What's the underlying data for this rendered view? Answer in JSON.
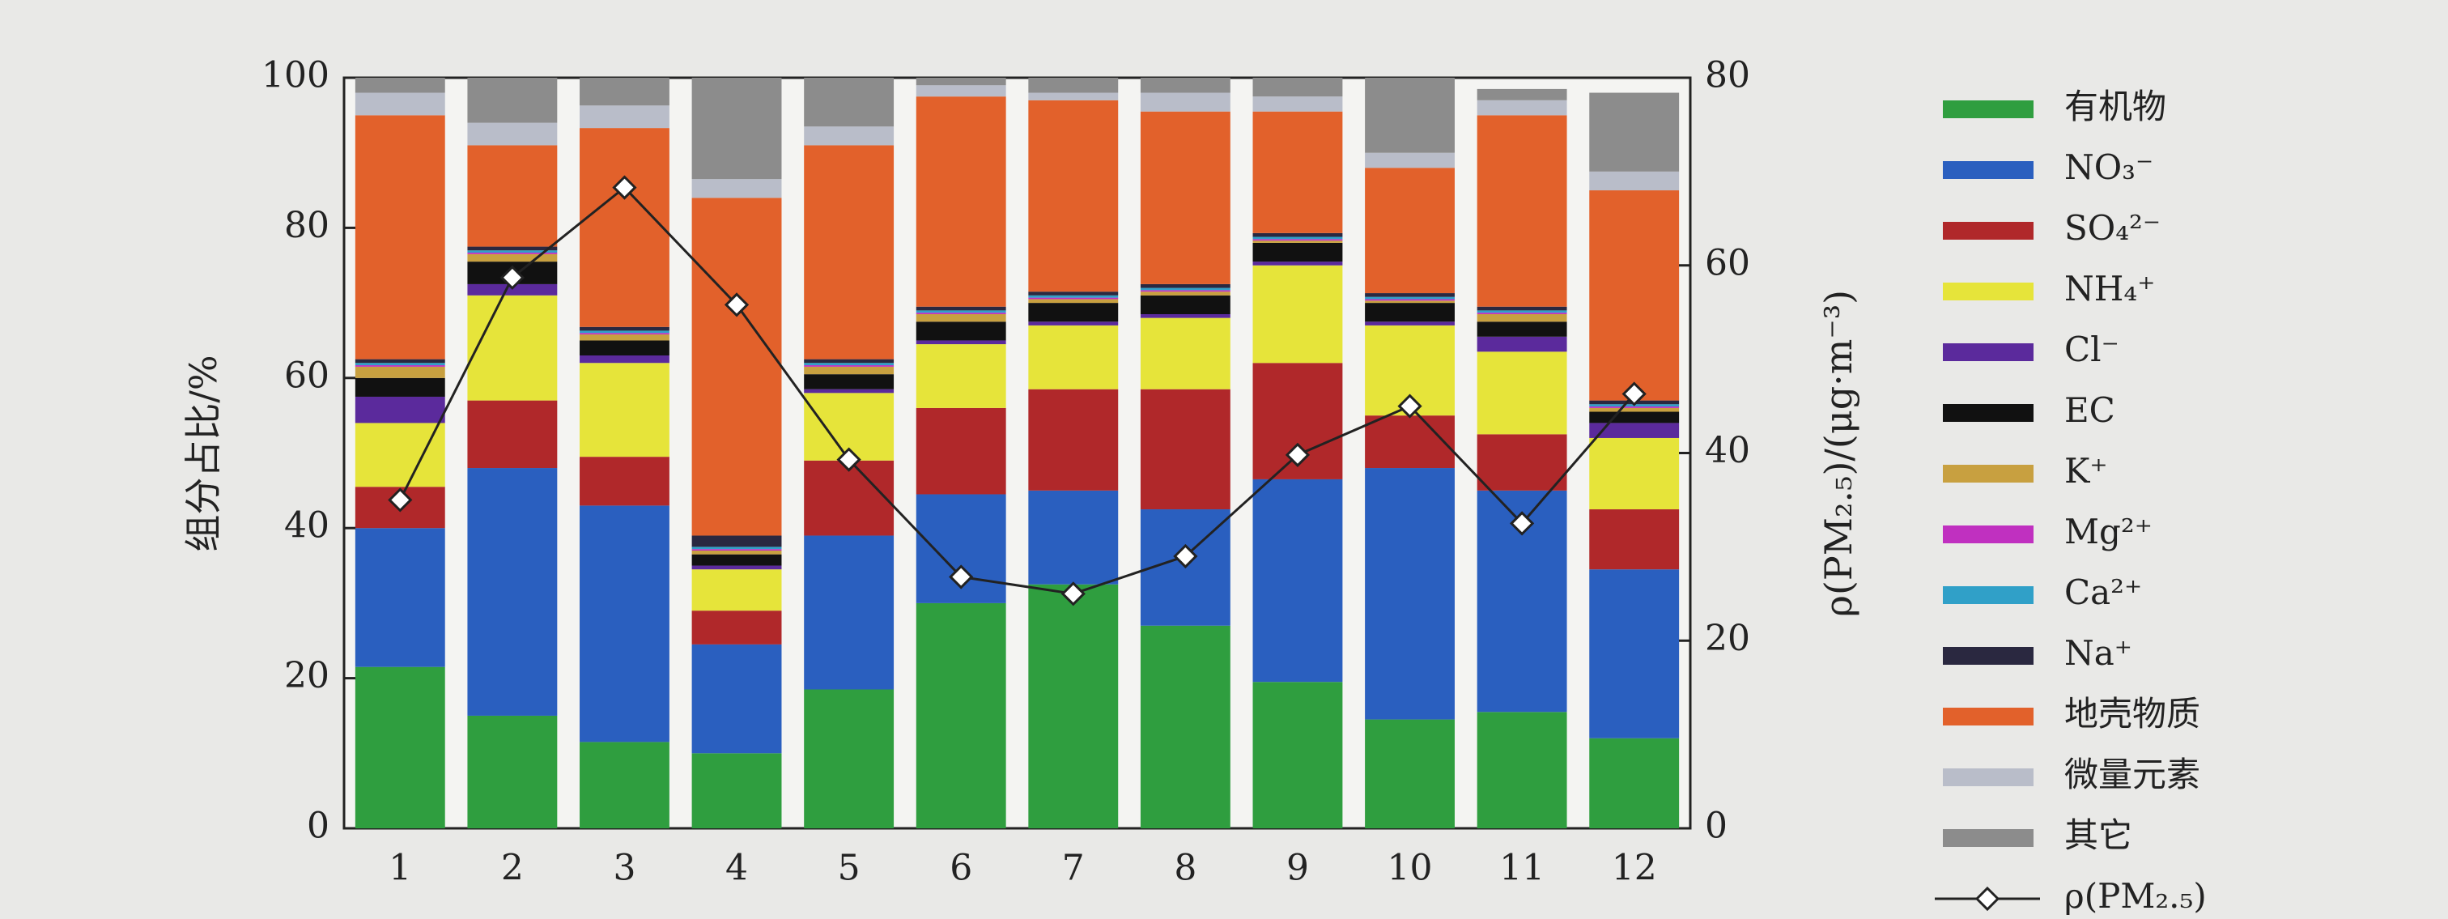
{
  "chart_data": {
    "type": "bar",
    "stacked": true,
    "y_label": "组分占比/%",
    "y2_label": "ρ(PM₂.₅)/(μg·m⁻³)",
    "categories": [
      "1",
      "2",
      "3",
      "4",
      "5",
      "6",
      "7",
      "8",
      "9",
      "10",
      "11",
      "12"
    ],
    "ylim": [
      0,
      100
    ],
    "yticks": [
      0,
      20,
      40,
      60,
      80,
      100
    ],
    "y2lim": [
      0,
      80
    ],
    "y2ticks": [
      0,
      20,
      40,
      60,
      80
    ],
    "series": [
      {
        "name": "有机物",
        "color": "#2f9e3f",
        "values": [
          21.5,
          15,
          11.5,
          10,
          18.5,
          30,
          32.5,
          27,
          19.5,
          14.5,
          15.5,
          12
        ]
      },
      {
        "name": "NO₃⁻",
        "color": "#2a5fbf",
        "values": [
          18.5,
          33,
          31.5,
          14.5,
          20.5,
          14.5,
          12.5,
          15.5,
          27,
          33.5,
          29.5,
          22.5
        ]
      },
      {
        "name": "SO₄²⁻",
        "color": "#b0282a",
        "values": [
          5.5,
          9,
          6.5,
          4.5,
          10,
          11.5,
          13.5,
          16,
          15.5,
          7,
          7.5,
          8
        ]
      },
      {
        "name": "NH₄⁺",
        "color": "#e6e43a",
        "values": [
          8.5,
          14,
          12.5,
          5.5,
          9,
          8.5,
          8.5,
          9.5,
          13,
          12,
          11,
          9.5
        ]
      },
      {
        "name": "Cl⁻",
        "color": "#5b2a9c",
        "values": [
          3.5,
          1.5,
          1,
          0.5,
          0.5,
          0.5,
          0.5,
          0.5,
          0.5,
          0.5,
          2,
          2
        ]
      },
      {
        "name": "EC",
        "color": "#111111",
        "values": [
          2.5,
          3,
          2,
          1.5,
          2,
          2.5,
          2.5,
          2.5,
          2.5,
          2.5,
          2,
          1.5
        ]
      },
      {
        "name": "K⁺",
        "color": "#c8a040",
        "values": [
          1.5,
          1,
          0.8,
          0.5,
          1,
          1,
          0.5,
          0.5,
          0.3,
          0.3,
          1,
          0.5
        ]
      },
      {
        "name": "Mg²⁺",
        "color": "#c030c0",
        "values": [
          0.2,
          0.2,
          0.2,
          0.2,
          0.2,
          0.2,
          0.2,
          0.2,
          0.2,
          0.2,
          0.2,
          0.2
        ]
      },
      {
        "name": "Ca²⁺",
        "color": "#30a0c8",
        "values": [
          0.3,
          0.3,
          0.3,
          0.3,
          0.3,
          0.3,
          0.3,
          0.3,
          0.3,
          0.3,
          0.3,
          0.3
        ]
      },
      {
        "name": "Na⁺",
        "color": "#2a2840",
        "values": [
          0.5,
          0.5,
          0.5,
          1.5,
          0.5,
          0.5,
          0.5,
          0.5,
          0.5,
          0.5,
          0.5,
          0.5
        ]
      },
      {
        "name": "地壳物质",
        "color": "#e2612b",
        "values": [
          32.5,
          13.5,
          26.5,
          45,
          28.5,
          28,
          25.5,
          23,
          16.2,
          16.7,
          25.5,
          28
        ]
      },
      {
        "name": "微量元素",
        "color": "#b9bdc9",
        "values": [
          3,
          3,
          3,
          2.5,
          2.5,
          1.5,
          1,
          2.5,
          2,
          2,
          2,
          2.5
        ]
      },
      {
        "name": "其它",
        "color": "#8c8c8c",
        "values": [
          2,
          6,
          3.7,
          13.5,
          6.5,
          1,
          2,
          2,
          2.5,
          10,
          1.5,
          10.5
        ]
      },
      {
        "name": "ρ(PM₂.₅)",
        "type": "line",
        "axis": "y2",
        "color": "#222222",
        "values": [
          35,
          58.7,
          68.3,
          55.8,
          39.3,
          26.8,
          25,
          29,
          39.8,
          45,
          32.5,
          46.3
        ]
      }
    ]
  }
}
